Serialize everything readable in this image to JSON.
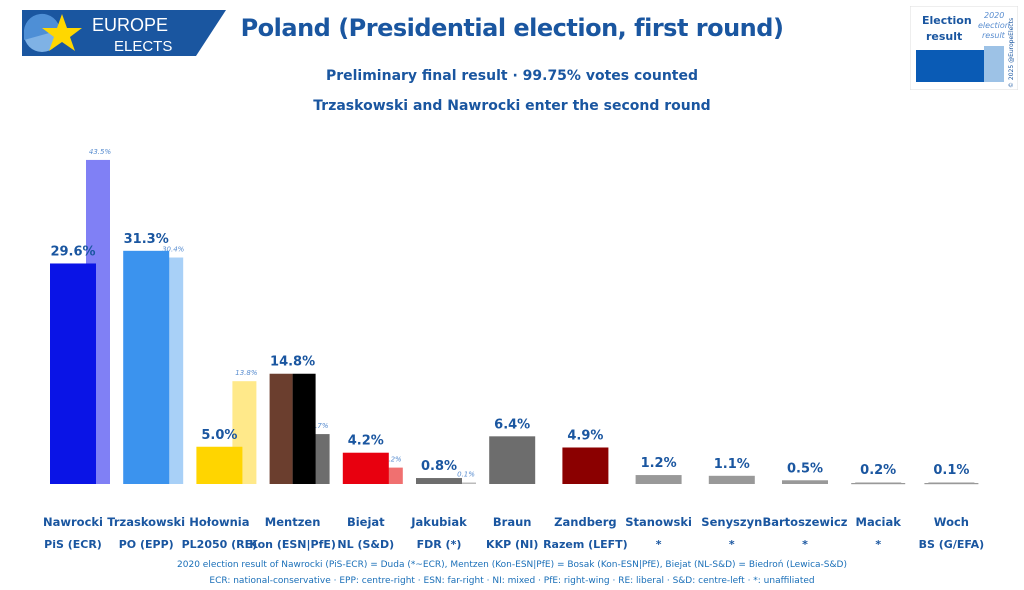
{
  "brand": {
    "line1": "EUROPE",
    "line2": "ELECTS"
  },
  "title": "Poland (Presidential election, first round)",
  "subtitle1": "Preliminary final result · 99.75% votes counted",
  "subtitle2": "Trzaskowski and Nawrocki enter the second round",
  "legend": {
    "current_label_line1": "Election",
    "current_label_line2": "result",
    "prev_label_line1": "2020",
    "prev_label_line2": "election",
    "prev_label_line3": "result",
    "copyright": "© 2025 @EuropeElects",
    "current_color": "#0a5bb5",
    "prev_color": "#9dc2e6"
  },
  "chart_data": {
    "type": "bar",
    "title": "Poland (Presidential election, first round)",
    "ylim": [
      0,
      45
    ],
    "grid": false,
    "categories": [
      {
        "name": "Nawrocki",
        "party": "PiS (ECR)"
      },
      {
        "name": "Trzaskowski",
        "party": "PO (EPP)"
      },
      {
        "name": "Hołownia",
        "party": "PL2050 (RE)"
      },
      {
        "name": "Mentzen",
        "party": "Kon (ESN|PfE)"
      },
      {
        "name": "Biejat",
        "party": "NL (S&D)"
      },
      {
        "name": "Jakubiak",
        "party": "FDR (*)"
      },
      {
        "name": "Braun",
        "party": "KKP (NI)"
      },
      {
        "name": "Zandberg",
        "party": "Razem (LEFT)"
      },
      {
        "name": "Stanowski",
        "party": "*"
      },
      {
        "name": "Senyszyn",
        "party": "*"
      },
      {
        "name": "Bartoszewicz",
        "party": "*"
      },
      {
        "name": "Maciak",
        "party": "*"
      },
      {
        "name": "Woch",
        "party": "BS (G/EFA)"
      }
    ],
    "series": [
      {
        "name": "Election result",
        "values": [
          29.6,
          31.3,
          5.0,
          14.8,
          4.2,
          0.8,
          6.4,
          4.9,
          1.2,
          1.1,
          0.5,
          0.2,
          0.1
        ],
        "labels": [
          "29.6%",
          "31.3%",
          "5.0%",
          "14.8%",
          "4.2%",
          "0.8%",
          "6.4%",
          "4.9%",
          "1.2%",
          "1.1%",
          "0.5%",
          "0.2%",
          "0.1%"
        ],
        "colors": [
          "#0a14e6",
          "#3b93ee",
          "#ffd500",
          "split:#6b3e2e,#000000",
          "#e8000f",
          "#6d6d6d",
          "#6d6d6d",
          "#8b0000",
          "#999999",
          "#999999",
          "#999999",
          "#cccccc",
          "#cccccc"
        ]
      },
      {
        "name": "2020 election result",
        "values": [
          43.5,
          30.4,
          13.8,
          6.7,
          2.2,
          0.1,
          null,
          null,
          null,
          null,
          null,
          null,
          null
        ],
        "labels": [
          "43.5%",
          "30.4%",
          "13.8%",
          "6.7%",
          "2.2%",
          "0.1%",
          "",
          "",
          "",
          "",
          "",
          "",
          ""
        ],
        "colors": [
          "#8080f5",
          "#a8d0f7",
          "#ffe98a",
          "#6d6d6d",
          "#f07070",
          "#bbbbbb"
        ]
      }
    ]
  },
  "footnote1": "2020 election result of Nawrocki (PiS-ECR) = Duda (*~ECR), Mentzen (Kon-ESN|PfE) = Bosak (Kon-ESN|PfE), Biejat (NL-S&D) = Biedroń (Lewica-S&D)",
  "footnote2": "ECR: national-conservative · EPP: centre-right · ESN: far-right · NI: mixed · PfE: right-wing · RE: liberal · S&D: centre-left · *: unaffiliated"
}
